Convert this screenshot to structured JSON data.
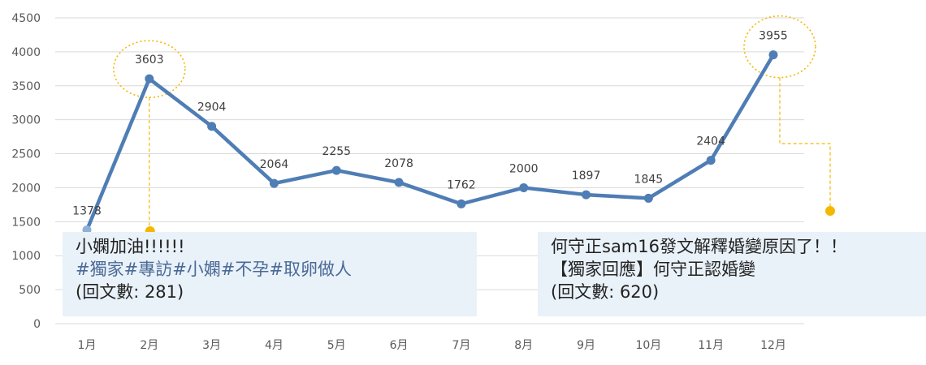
{
  "chart_data": {
    "type": "line",
    "categories": [
      "1月",
      "2月",
      "3月",
      "4月",
      "5月",
      "6月",
      "7月",
      "8月",
      "9月",
      "10月",
      "11月",
      "12月"
    ],
    "values": [
      1378,
      3603,
      2904,
      2064,
      2255,
      2078,
      1762,
      2000,
      1897,
      1845,
      2404,
      3955
    ],
    "ylim": [
      0,
      4500
    ],
    "yticks": [
      0,
      500,
      1000,
      1500,
      2000,
      2500,
      3000,
      3500,
      4000,
      4500
    ],
    "grid": true,
    "line_color": "#4f7db5",
    "highlight_color": "#f5b800",
    "highlighted_points": [
      "2月",
      "12月"
    ]
  },
  "annotations": {
    "left": {
      "line1": "小嫻加油!!!!!!",
      "line2": " #獨家#專訪#小嫻#不孕#取卵做人",
      "line3": "(回文數: 281)"
    },
    "right": {
      "line1": "何守正sam16發文解釋婚變原因了！！",
      "line2": "【獨家回應】何守正認婚變",
      "line3": "(回文數: 620)"
    }
  }
}
